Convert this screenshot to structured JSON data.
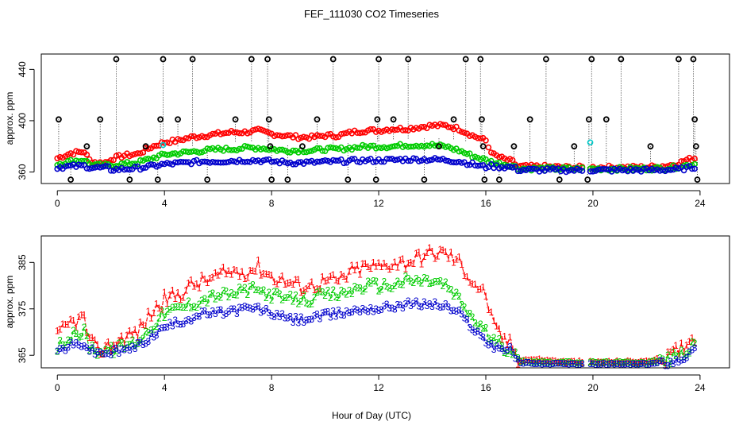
{
  "title": "FEF_111030  CO2 Timeseries",
  "xlabel": "Hour of Day (UTC)",
  "colors": {
    "series1": "#ff0000",
    "series2": "#00cc00",
    "series3": "#0000cc",
    "spike": "#000000",
    "cyan": "#00cccc"
  },
  "chart_data": [
    {
      "type": "scatter",
      "panel": "top",
      "ylabel": "approx. ppm",
      "xlim": [
        -0.6,
        25.1
      ],
      "ylim": [
        351,
        452
      ],
      "x_ticks": [
        0,
        4,
        8,
        12,
        16,
        20,
        24
      ],
      "y_ticks": [
        360,
        400,
        440
      ],
      "grid": false,
      "series": [
        {
          "color": "#ff0000",
          "profile": "1"
        },
        {
          "color": "#00cc00",
          "profile": "2"
        },
        {
          "color": "#0000cc",
          "profile": "3"
        }
      ],
      "cyan_points": [
        {
          "x": 3.95,
          "y": 381
        },
        {
          "x": 19.9,
          "y": 383
        }
      ],
      "spikes": [
        {
          "x": 0.05,
          "y": 401
        },
        {
          "x": 0.5,
          "y": 354
        },
        {
          "x": 1.1,
          "y": 380
        },
        {
          "x": 1.6,
          "y": 401
        },
        {
          "x": 2.2,
          "y": 448
        },
        {
          "x": 2.7,
          "y": 354
        },
        {
          "x": 3.3,
          "y": 380
        },
        {
          "x": 3.75,
          "y": 354
        },
        {
          "x": 3.85,
          "y": 401
        },
        {
          "x": 3.95,
          "y": 448
        },
        {
          "x": 4.5,
          "y": 401
        },
        {
          "x": 5.05,
          "y": 448
        },
        {
          "x": 5.6,
          "y": 354
        },
        {
          "x": 6.65,
          "y": 401
        },
        {
          "x": 7.25,
          "y": 448
        },
        {
          "x": 7.85,
          "y": 448
        },
        {
          "x": 7.9,
          "y": 401
        },
        {
          "x": 7.95,
          "y": 380
        },
        {
          "x": 8.0,
          "y": 354
        },
        {
          "x": 8.6,
          "y": 354
        },
        {
          "x": 9.15,
          "y": 380
        },
        {
          "x": 9.7,
          "y": 401
        },
        {
          "x": 10.3,
          "y": 448
        },
        {
          "x": 10.85,
          "y": 354
        },
        {
          "x": 11.9,
          "y": 354
        },
        {
          "x": 11.95,
          "y": 401
        },
        {
          "x": 12.0,
          "y": 448
        },
        {
          "x": 12.55,
          "y": 401
        },
        {
          "x": 13.1,
          "y": 448
        },
        {
          "x": 13.7,
          "y": 354
        },
        {
          "x": 14.25,
          "y": 380
        },
        {
          "x": 14.8,
          "y": 401
        },
        {
          "x": 15.25,
          "y": 448
        },
        {
          "x": 15.8,
          "y": 448
        },
        {
          "x": 15.85,
          "y": 401
        },
        {
          "x": 15.9,
          "y": 380
        },
        {
          "x": 15.95,
          "y": 354
        },
        {
          "x": 16.5,
          "y": 354
        },
        {
          "x": 17.05,
          "y": 380
        },
        {
          "x": 17.65,
          "y": 401
        },
        {
          "x": 18.25,
          "y": 448
        },
        {
          "x": 18.75,
          "y": 354
        },
        {
          "x": 19.3,
          "y": 380
        },
        {
          "x": 19.8,
          "y": 354
        },
        {
          "x": 19.85,
          "y": 401
        },
        {
          "x": 19.95,
          "y": 448
        },
        {
          "x": 20.5,
          "y": 401
        },
        {
          "x": 21.05,
          "y": 448
        },
        {
          "x": 22.15,
          "y": 380
        },
        {
          "x": 23.2,
          "y": 448
        },
        {
          "x": 23.75,
          "y": 448
        },
        {
          "x": 23.8,
          "y": 401
        },
        {
          "x": 23.85,
          "y": 380
        },
        {
          "x": 23.9,
          "y": 354
        }
      ]
    },
    {
      "type": "line",
      "panel": "bottom",
      "ylabel": "approx. ppm",
      "xlim": [
        -0.6,
        25.1
      ],
      "ylim": [
        362.3,
        390.7
      ],
      "x_ticks": [
        0,
        4,
        8,
        12,
        16,
        20,
        24
      ],
      "y_ticks": [
        365,
        375,
        385
      ],
      "grid": false,
      "series": [
        {
          "color": "#ff0000",
          "symbol": "1",
          "profile": "1"
        },
        {
          "color": "#00cc00",
          "symbol": "2",
          "profile": "2"
        },
        {
          "color": "#0000cc",
          "symbol": "3",
          "profile": "3"
        }
      ]
    }
  ],
  "profiles": {
    "1": [
      [
        0,
        369
      ],
      [
        0.5,
        372
      ],
      [
        1.0,
        373
      ],
      [
        1.2,
        368
      ],
      [
        1.5,
        366
      ],
      [
        2,
        367
      ],
      [
        2.5,
        369
      ],
      [
        3,
        370
      ],
      [
        3.5,
        374
      ],
      [
        4,
        377
      ],
      [
        4.5,
        378
      ],
      [
        5,
        380
      ],
      [
        5.5,
        381
      ],
      [
        6,
        382
      ],
      [
        6.5,
        383
      ],
      [
        7,
        383
      ],
      [
        7.5,
        384
      ],
      [
        8,
        382
      ],
      [
        8.5,
        381
      ],
      [
        9,
        380
      ],
      [
        9.5,
        380
      ],
      [
        10,
        381
      ],
      [
        10.5,
        381
      ],
      [
        11,
        383
      ],
      [
        11.5,
        384
      ],
      [
        12,
        384
      ],
      [
        12.5,
        385
      ],
      [
        13,
        385
      ],
      [
        13.5,
        386
      ],
      [
        14,
        387
      ],
      [
        14.5,
        387
      ],
      [
        15,
        385
      ],
      [
        15.5,
        381
      ],
      [
        16,
        378
      ],
      [
        16.3,
        371
      ],
      [
        16.6,
        369
      ],
      [
        17,
        367
      ],
      [
        17.2,
        364
      ],
      [
        18,
        364
      ],
      [
        19,
        363.5
      ],
      [
        19.7,
        363.5
      ],
      [
        20,
        363.5
      ],
      [
        21,
        363.5
      ],
      [
        22,
        363.6
      ],
      [
        22.8,
        364.5
      ],
      [
        23.2,
        366
      ],
      [
        23.5,
        368
      ],
      [
        23.8,
        369
      ]
    ],
    "2": [
      [
        0,
        367
      ],
      [
        0.5,
        369
      ],
      [
        1.0,
        370
      ],
      [
        1.2,
        367
      ],
      [
        1.5,
        366
      ],
      [
        2,
        366
      ],
      [
        2.5,
        367
      ],
      [
        3,
        368
      ],
      [
        3.5,
        371
      ],
      [
        4,
        374
      ],
      [
        4.5,
        375
      ],
      [
        5,
        376
      ],
      [
        5.5,
        377
      ],
      [
        6,
        378
      ],
      [
        6.5,
        378
      ],
      [
        7,
        379
      ],
      [
        7.5,
        379
      ],
      [
        8,
        378
      ],
      [
        8.5,
        377
      ],
      [
        9,
        377
      ],
      [
        9.5,
        377
      ],
      [
        10,
        378
      ],
      [
        10.5,
        378
      ],
      [
        11,
        379
      ],
      [
        11.5,
        380
      ],
      [
        12,
        380
      ],
      [
        12.5,
        380
      ],
      [
        13,
        381
      ],
      [
        13.5,
        381
      ],
      [
        14,
        381
      ],
      [
        14.5,
        380
      ],
      [
        15,
        377
      ],
      [
        15.5,
        373
      ],
      [
        16,
        370
      ],
      [
        16.3,
        368
      ],
      [
        16.6,
        367
      ],
      [
        17,
        366
      ],
      [
        17.2,
        363.7
      ],
      [
        18,
        363.5
      ],
      [
        19,
        363.4
      ],
      [
        19.7,
        363.4
      ],
      [
        20,
        363.4
      ],
      [
        21,
        363.4
      ],
      [
        22,
        363.4
      ],
      [
        22.8,
        364
      ],
      [
        23.2,
        365
      ],
      [
        23.5,
        366
      ],
      [
        23.8,
        367
      ]
    ],
    "3": [
      [
        0,
        366
      ],
      [
        0.5,
        367
      ],
      [
        1.0,
        367.5
      ],
      [
        1.2,
        366
      ],
      [
        1.5,
        365.5
      ],
      [
        2,
        365.5
      ],
      [
        2.5,
        366
      ],
      [
        3,
        367
      ],
      [
        3.5,
        369
      ],
      [
        4,
        371
      ],
      [
        4.5,
        372
      ],
      [
        5,
        373
      ],
      [
        5.5,
        374
      ],
      [
        6,
        374
      ],
      [
        6.5,
        374.5
      ],
      [
        7,
        375
      ],
      [
        7.5,
        375
      ],
      [
        8,
        374
      ],
      [
        8.5,
        373
      ],
      [
        9,
        372.5
      ],
      [
        9.5,
        373
      ],
      [
        10,
        373.5
      ],
      [
        10.5,
        374
      ],
      [
        11,
        374.5
      ],
      [
        11.5,
        375
      ],
      [
        12,
        375
      ],
      [
        12.5,
        375.5
      ],
      [
        13,
        376
      ],
      [
        13.5,
        376
      ],
      [
        14,
        376
      ],
      [
        14.5,
        375.5
      ],
      [
        15,
        374
      ],
      [
        15.5,
        371
      ],
      [
        16,
        368
      ],
      [
        16.3,
        367
      ],
      [
        16.6,
        366.5
      ],
      [
        17,
        366
      ],
      [
        17.2,
        363.4
      ],
      [
        18,
        363.2
      ],
      [
        19,
        363.1
      ],
      [
        19.7,
        363.1
      ],
      [
        20,
        363.1
      ],
      [
        21,
        363.1
      ],
      [
        22,
        363.1
      ],
      [
        22.8,
        363.5
      ],
      [
        23.2,
        364
      ],
      [
        23.5,
        365
      ],
      [
        23.8,
        366
      ]
    ]
  }
}
